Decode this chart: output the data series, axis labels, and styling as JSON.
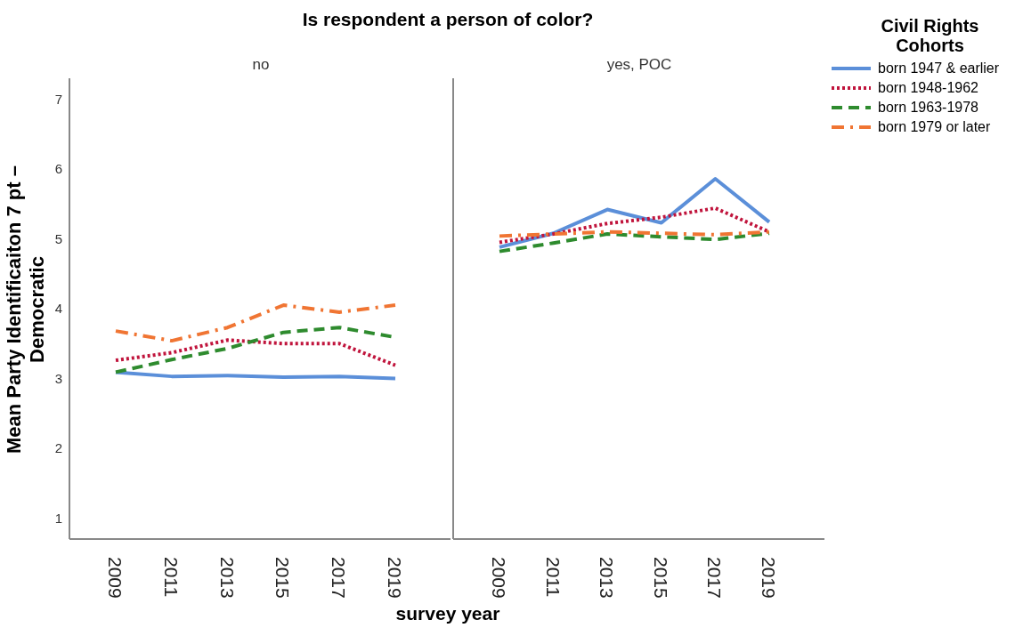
{
  "chart_data": [
    {
      "type": "line",
      "title": "Is respondent a person of color?",
      "subtitle": "no",
      "xlabel": "survey year",
      "ylabel": "Mean Party Identificaiton 7 pt – Democratic",
      "categories": [
        "2009",
        "2011",
        "2013",
        "2015",
        "2017",
        "2019"
      ],
      "ylim": [
        0.7,
        7.3
      ],
      "yticks": [
        1,
        2,
        3,
        4,
        5,
        6,
        7
      ],
      "grid": false,
      "legend": false,
      "marker": "none",
      "series": [
        {
          "color": "#5b8fd9",
          "line_style": "solid",
          "values": [
            3.09,
            3.03,
            3.04,
            3.02,
            3.03,
            3.0
          ]
        },
        {
          "color": "#c0143c",
          "line_style": "dotted",
          "values": [
            3.26,
            3.37,
            3.55,
            3.5,
            3.5,
            3.19
          ]
        },
        {
          "color": "#2e8b2e",
          "line_style": "dashed",
          "values": [
            3.09,
            3.27,
            3.43,
            3.66,
            3.73,
            3.59
          ]
        },
        {
          "color": "#f07533",
          "line_style": "dashdot",
          "values": [
            3.68,
            3.54,
            3.73,
            4.05,
            3.95,
            4.05
          ]
        }
      ]
    },
    {
      "type": "line",
      "subtitle": "yes, POC",
      "legend_title": "Civil Rights Cohorts",
      "categories": [
        "2009",
        "2011",
        "2013",
        "2015",
        "2017",
        "2019"
      ],
      "ylim": [
        0.7,
        7.3
      ],
      "yticks": [
        1,
        2,
        3,
        4,
        5,
        6,
        7
      ],
      "tick_labels": "x",
      "grid": false,
      "legend": "right",
      "marker": "none",
      "series": [
        {
          "name": "born 1947 & earlier",
          "color": "#5b8fd9",
          "line_style": "solid",
          "values": [
            4.88,
            5.08,
            5.42,
            5.23,
            5.86,
            5.24
          ]
        },
        {
          "name": "born 1948-1962",
          "color": "#c0143c",
          "line_style": "dotted",
          "values": [
            4.95,
            5.07,
            5.22,
            5.31,
            5.44,
            5.1
          ]
        },
        {
          "name": "born 1963-1978",
          "color": "#2e8b2e",
          "line_style": "dashed",
          "values": [
            4.82,
            4.94,
            5.07,
            5.03,
            4.99,
            5.08
          ]
        },
        {
          "name": "born 1979 or later",
          "color": "#f07533",
          "line_style": "dashdot",
          "values": [
            5.04,
            5.07,
            5.1,
            5.08,
            5.06,
            5.1
          ]
        }
      ]
    }
  ]
}
